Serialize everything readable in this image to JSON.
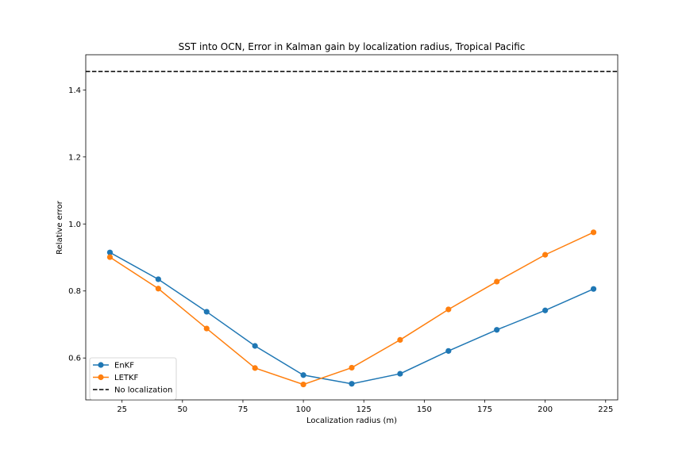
{
  "chart_data": {
    "type": "line",
    "title": "SST into OCN, Error in Kalman gain by localization radius, Tropical Pacific",
    "xlabel": "Localization radius (m)",
    "ylabel": "Relative error",
    "xlim": [
      10,
      230
    ],
    "ylim": [
      0.475,
      1.505
    ],
    "xticks": [
      25,
      50,
      75,
      100,
      125,
      150,
      175,
      200,
      225
    ],
    "yticks": [
      0.6,
      0.8,
      1.0,
      1.2,
      1.4
    ],
    "ytick_labels": [
      "0.6",
      "0.8",
      "1.0",
      "1.2",
      "1.4"
    ],
    "x": [
      20,
      40,
      60,
      80,
      100,
      120,
      140,
      160,
      180,
      200,
      220
    ],
    "series": [
      {
        "name": "EnKF",
        "color": "#1f77b4",
        "marker": "circle",
        "values": [
          0.915,
          0.835,
          0.738,
          0.636,
          0.549,
          0.523,
          0.553,
          0.621,
          0.684,
          0.742,
          0.806
        ]
      },
      {
        "name": "LETKF",
        "color": "#ff7f0e",
        "marker": "circle",
        "values": [
          0.901,
          0.807,
          0.688,
          0.57,
          0.521,
          0.571,
          0.654,
          0.745,
          0.828,
          0.908,
          0.975
        ]
      }
    ],
    "reference_line": {
      "name": "No localization",
      "y": 1.455,
      "color": "#000000",
      "style": "dashed"
    },
    "grid": false,
    "legend_position": "lower-left"
  }
}
